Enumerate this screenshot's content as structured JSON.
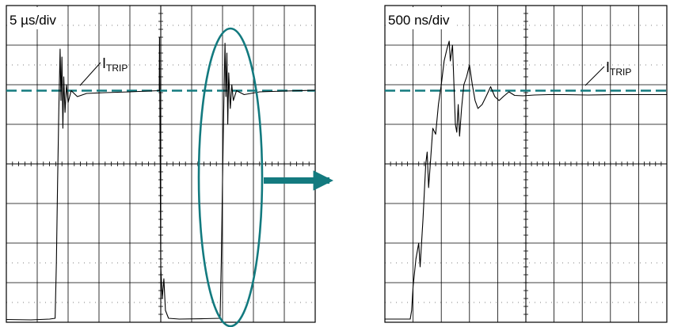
{
  "colors": {
    "trace": "#000000",
    "grid": "#000000",
    "accent": "#137a7f"
  },
  "chart_data": [
    {
      "type": "line",
      "panel": "left",
      "title": "5 µs/div",
      "annotation": {
        "main": "I",
        "sub": "TRIP"
      },
      "grid": true,
      "xlim": [
        0,
        10
      ],
      "ylim": [
        0,
        8
      ],
      "units": "divisions",
      "threshold_level": 5.85,
      "trace": [
        [
          0,
          0.07
        ],
        [
          0.8,
          0.06
        ],
        [
          1.4,
          0.08
        ],
        [
          1.58,
          0.1
        ],
        [
          1.62,
          1.5
        ],
        [
          1.66,
          3.5
        ],
        [
          1.7,
          5.4
        ],
        [
          1.74,
          6.9
        ],
        [
          1.77,
          5.6
        ],
        [
          1.8,
          6.7
        ],
        [
          1.83,
          4.9
        ],
        [
          1.86,
          6.2
        ],
        [
          1.9,
          5.3
        ],
        [
          1.95,
          6.0
        ],
        [
          2.0,
          5.55
        ],
        [
          2.1,
          5.85
        ],
        [
          2.3,
          5.7
        ],
        [
          2.6,
          5.78
        ],
        [
          3.2,
          5.8
        ],
        [
          4.0,
          5.82
        ],
        [
          4.6,
          5.84
        ],
        [
          4.95,
          5.85
        ],
        [
          4.96,
          7.2
        ],
        [
          4.97,
          5.8
        ],
        [
          5.0,
          1.4
        ],
        [
          5.05,
          0.6
        ],
        [
          5.1,
          1.1
        ],
        [
          5.15,
          0.3
        ],
        [
          5.25,
          0.1
        ],
        [
          5.6,
          0.08
        ],
        [
          6.4,
          0.09
        ],
        [
          6.92,
          0.1
        ],
        [
          6.96,
          1.5
        ],
        [
          7.0,
          3.6
        ],
        [
          7.04,
          5.5
        ],
        [
          7.08,
          7.05
        ],
        [
          7.11,
          5.7
        ],
        [
          7.14,
          6.8
        ],
        [
          7.17,
          5.0
        ],
        [
          7.2,
          6.3
        ],
        [
          7.25,
          5.4
        ],
        [
          7.3,
          6.0
        ],
        [
          7.35,
          5.6
        ],
        [
          7.45,
          5.85
        ],
        [
          7.7,
          5.75
        ],
        [
          8.2,
          5.82
        ],
        [
          9.0,
          5.84
        ],
        [
          10,
          5.86
        ]
      ]
    },
    {
      "type": "line",
      "panel": "right",
      "title": "500 ns/div",
      "annotation": {
        "main": "I",
        "sub": "TRIP"
      },
      "grid": true,
      "xlim": [
        0,
        10
      ],
      "ylim": [
        0,
        8
      ],
      "units": "divisions",
      "threshold_level": 5.85,
      "trace": [
        [
          0,
          0.08
        ],
        [
          0.9,
          0.08
        ],
        [
          0.95,
          0.3
        ],
        [
          1.0,
          0.9
        ],
        [
          1.1,
          1.6
        ],
        [
          1.2,
          2.0
        ],
        [
          1.25,
          1.4
        ],
        [
          1.35,
          2.6
        ],
        [
          1.45,
          4.0
        ],
        [
          1.5,
          4.3
        ],
        [
          1.55,
          3.4
        ],
        [
          1.6,
          3.9
        ],
        [
          1.7,
          4.9
        ],
        [
          1.8,
          4.75
        ],
        [
          1.9,
          5.5
        ],
        [
          2.0,
          6.0
        ],
        [
          2.1,
          6.6
        ],
        [
          2.2,
          6.9
        ],
        [
          2.28,
          7.1
        ],
        [
          2.32,
          6.6
        ],
        [
          2.4,
          7.0
        ],
        [
          2.45,
          6.0
        ],
        [
          2.5,
          5.0
        ],
        [
          2.55,
          4.8
        ],
        [
          2.6,
          5.5
        ],
        [
          2.65,
          4.7
        ],
        [
          2.72,
          5.4
        ],
        [
          2.8,
          6.0
        ],
        [
          2.9,
          6.2
        ],
        [
          3.0,
          6.5
        ],
        [
          3.1,
          6.0
        ],
        [
          3.2,
          5.6
        ],
        [
          3.3,
          5.4
        ],
        [
          3.45,
          5.5
        ],
        [
          3.6,
          5.72
        ],
        [
          3.75,
          5.95
        ],
        [
          3.9,
          5.7
        ],
        [
          4.05,
          5.6
        ],
        [
          4.2,
          5.7
        ],
        [
          4.4,
          5.82
        ],
        [
          4.6,
          5.73
        ],
        [
          4.9,
          5.72
        ],
        [
          5.3,
          5.74
        ],
        [
          5.8,
          5.75
        ],
        [
          6.4,
          5.75
        ],
        [
          7.2,
          5.74
        ],
        [
          8.2,
          5.75
        ],
        [
          10,
          5.75
        ]
      ]
    }
  ]
}
